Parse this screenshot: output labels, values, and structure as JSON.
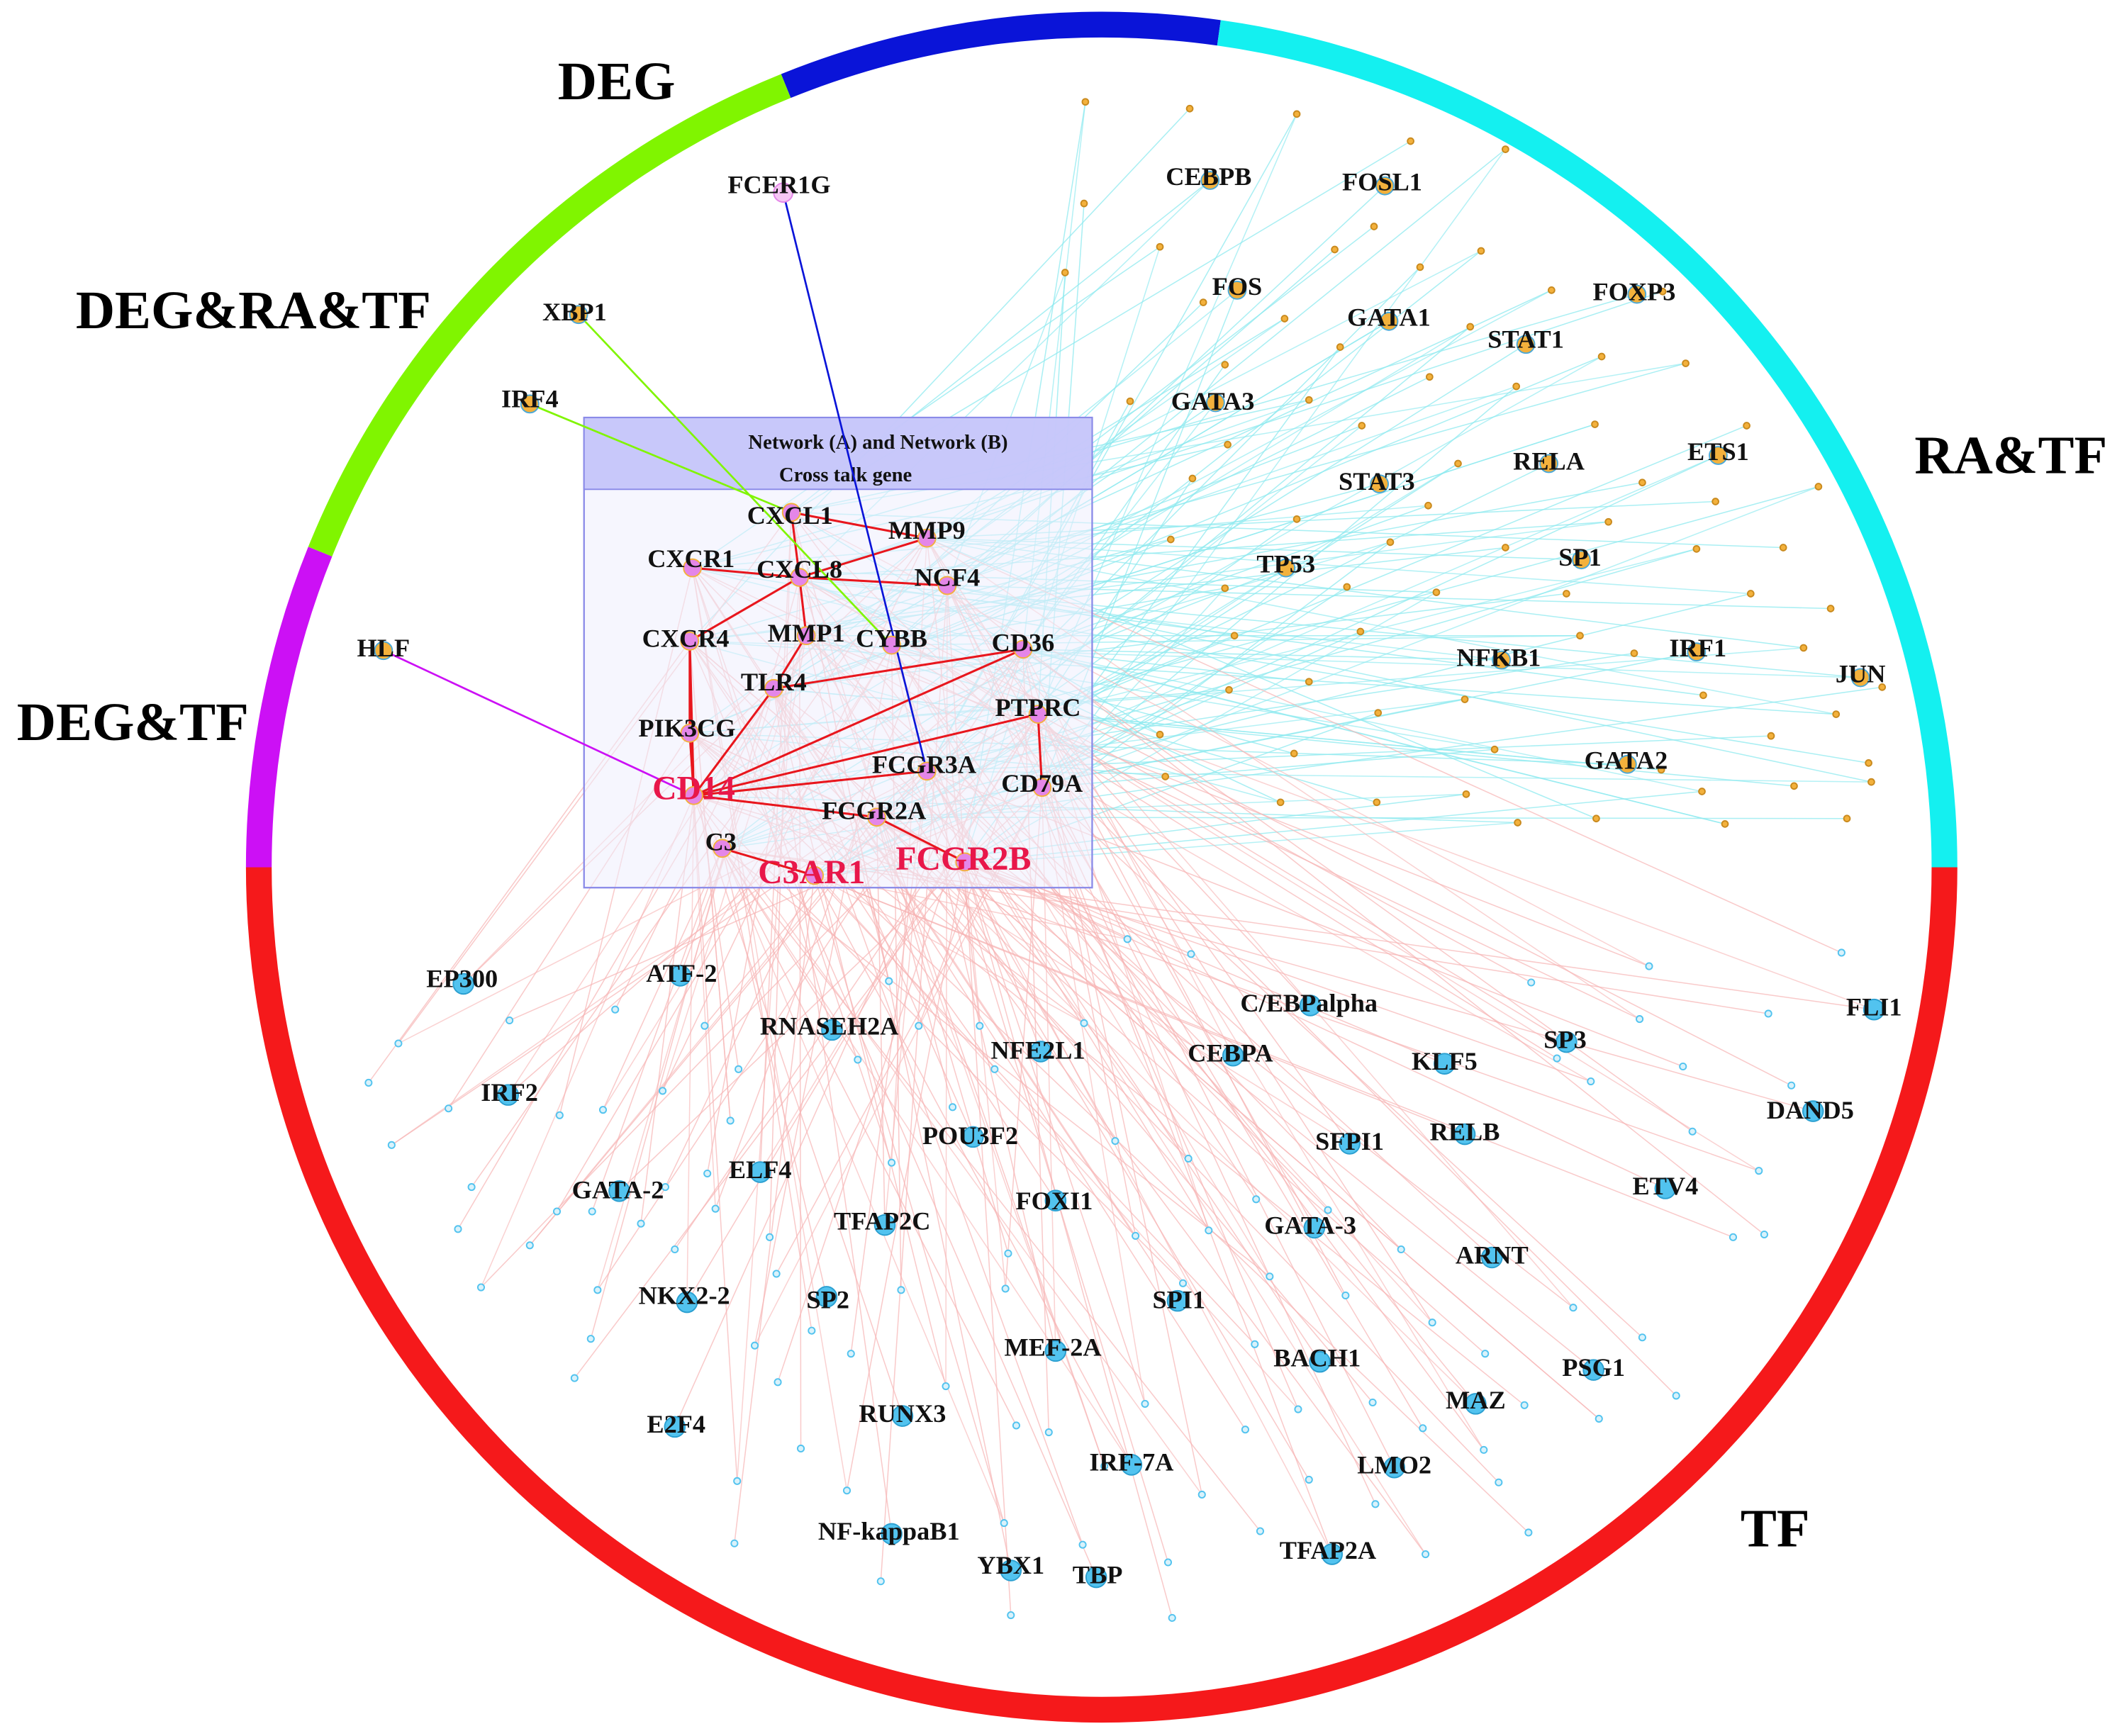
{
  "colors": {
    "DEG": "#0a14d8",
    "RA&TF": "#14f0f0",
    "TF": "#f5191b",
    "DEG&TF": "#cc10f5",
    "DEG&RA&TF": "#80f500",
    "highlight": "#e8174a",
    "cross_edge": "#e8161d",
    "ratf_edge": "#8ee9ef",
    "tf_edge": "#f6b4b4",
    "tf_node": "#52c3ef",
    "ratf_node": "#f3b13c",
    "cross_node": "#e486e8"
  },
  "segments": [
    {
      "id": "DEG",
      "label": "DEG",
      "color": "#0a14d8"
    },
    {
      "id": "RA&TF",
      "label": "RA&TF",
      "color": "#14f0f0"
    },
    {
      "id": "TF",
      "label": "TF",
      "color": "#f5191b"
    },
    {
      "id": "DEG&TF",
      "label": "DEG&TF",
      "color": "#cc10f5"
    },
    {
      "id": "DEG&RA&TF",
      "label": "DEG&RA&TF",
      "color": "#80f500"
    }
  ],
  "crosstalk_box": {
    "title_line1": "Network (A) and Network (B)",
    "title_line2": "Cross talk gene"
  },
  "crosstalk_genes": [
    {
      "name": "CXCL1"
    },
    {
      "name": "MMP9"
    },
    {
      "name": "CXCR1"
    },
    {
      "name": "CXCL8"
    },
    {
      "name": "NCF4"
    },
    {
      "name": "CXCR4"
    },
    {
      "name": "MMP1"
    },
    {
      "name": "CYBB"
    },
    {
      "name": "CD36"
    },
    {
      "name": "TLR4"
    },
    {
      "name": "PIK3CG"
    },
    {
      "name": "PTPRC"
    },
    {
      "name": "FCGR3A"
    },
    {
      "name": "CD14",
      "highlight": true
    },
    {
      "name": "CD79A"
    },
    {
      "name": "FCGR2A"
    },
    {
      "name": "C3"
    },
    {
      "name": "FCGR2B",
      "highlight": true
    },
    {
      "name": "C3AR1",
      "highlight": true
    }
  ],
  "deg_genes": [
    {
      "name": "FCER1G",
      "target": "FCGR3A"
    }
  ],
  "deg_ra_tf_genes": [
    {
      "name": "XBP1",
      "target": "CYBB"
    },
    {
      "name": "IRF4",
      "target": "CXCL1"
    }
  ],
  "deg_tf_genes": [
    {
      "name": "HLF",
      "target": "CD14"
    }
  ],
  "ra_tf_genes": [
    "CEBPB",
    "FOSL1",
    "FOS",
    "FOXP3",
    "GATA1",
    "STAT1",
    "GATA3",
    "RELA",
    "ETS1",
    "STAT3",
    "TP53",
    "SP1",
    "NFKB1",
    "IRF1",
    "JUN",
    "GATA2"
  ],
  "tf_genes": [
    "EP300",
    "ATF-2",
    "C/EBPalpha",
    "FLI1",
    "RNASEH2A",
    "NFE2L1",
    "CEBPA",
    "KLF5",
    "SP3",
    "IRF2",
    "DAND5",
    "RELB",
    "SFPI1",
    "POU3F2",
    "GATA-2",
    "ELF4",
    "FOXI1",
    "ETV4",
    "TFAP2C",
    "GATA-3",
    "ARNT",
    "NKX2-2",
    "SP2",
    "SPI1",
    "MEF-2A",
    "BACH1",
    "PSG1",
    "MAZ",
    "E2F4",
    "RUNX3",
    "IRF-7A",
    "LMO2",
    "NF-kappaB1",
    "TFAP2A",
    "YBX1",
    "TBP"
  ],
  "crosstalk_edges": [
    [
      "CXCL1",
      "MMP9"
    ],
    [
      "CXCL1",
      "CXCL8"
    ],
    [
      "CXCR1",
      "CXCL8"
    ],
    [
      "CXCL8",
      "MMP9"
    ],
    [
      "CXCL8",
      "NCF4"
    ],
    [
      "CXCL8",
      "MMP1"
    ],
    [
      "CXCR4",
      "PIK3CG"
    ],
    [
      "CXCR4",
      "CXCL8"
    ],
    [
      "TLR4",
      "CD36"
    ],
    [
      "TLR4",
      "CD14"
    ],
    [
      "CD14",
      "CD36"
    ],
    [
      "CD14",
      "PTPRC"
    ],
    [
      "CD14",
      "FCGR2A"
    ],
    [
      "CD14",
      "CXCR4"
    ],
    [
      "PIK3CG",
      "CD14"
    ],
    [
      "PTPRC",
      "CD79A"
    ],
    [
      "FCGR2A",
      "FCGR2B"
    ],
    [
      "C3",
      "C3AR1"
    ],
    [
      "MMP1",
      "TLR4"
    ],
    [
      "CD14",
      "FCGR3A"
    ]
  ]
}
